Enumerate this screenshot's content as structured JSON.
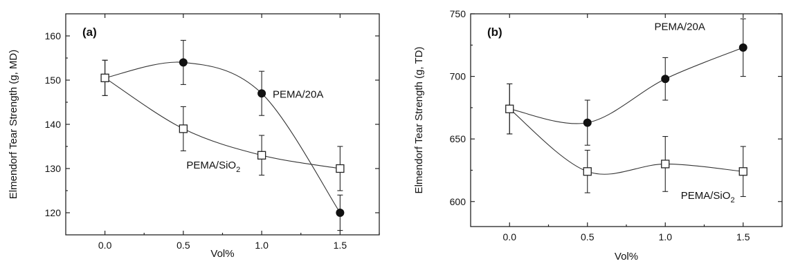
{
  "chart_data": [
    {
      "type": "scatter",
      "panel_label": "(a)",
      "xlabel": "Vol%",
      "ylabel": "Elmendorf Tear Strength (g, MD)",
      "xlim": [
        -0.25,
        1.75
      ],
      "ylim": [
        115,
        165
      ],
      "xticks": [
        0.0,
        0.5,
        1.0,
        1.5
      ],
      "xtick_labels": [
        "0.0",
        "0.5",
        "1.0",
        "1.5"
      ],
      "yticks": [
        120,
        130,
        140,
        150,
        160
      ],
      "ytick_labels": [
        "120",
        "130",
        "140",
        "150",
        "160"
      ],
      "grid": false,
      "series": [
        {
          "name": "PEMA/20A",
          "label_text": "PEMA/20A",
          "marker": "filled-circle",
          "x": [
            0.0,
            0.5,
            1.0,
            1.5
          ],
          "y": [
            150.5,
            154,
            147,
            120
          ],
          "err": [
            4,
            5,
            5,
            4
          ],
          "label_at": [
            1.07,
            146
          ]
        },
        {
          "name": "PEMA/SiO2",
          "label_text": "PEMA/SiO",
          "label_sub": "2",
          "marker": "open-square",
          "x": [
            0.0,
            0.5,
            1.0,
            1.5
          ],
          "y": [
            150.5,
            139,
            133,
            130
          ],
          "err": [
            4,
            5,
            4.5,
            5
          ],
          "label_at": [
            0.52,
            130
          ]
        }
      ]
    },
    {
      "type": "scatter",
      "panel_label": "(b)",
      "xlabel": "Vol%",
      "ylabel": "Elmendorf Tear Strength (g, TD)",
      "xlim": [
        -0.25,
        1.75
      ],
      "ylim": [
        580,
        750
      ],
      "xticks": [
        0.0,
        0.5,
        1.0,
        1.5
      ],
      "xtick_labels": [
        "0.0",
        "0.5",
        "1.0",
        "1.5"
      ],
      "yticks": [
        600,
        650,
        700,
        750
      ],
      "ytick_labels": [
        "600",
        "650",
        "700",
        "750"
      ],
      "grid": false,
      "series": [
        {
          "name": "PEMA/20A",
          "label_text": "PEMA/20A",
          "marker": "filled-circle",
          "x": [
            0.0,
            0.5,
            1.0,
            1.5
          ],
          "y": [
            674,
            663,
            698,
            723
          ],
          "err": [
            20,
            18,
            17,
            23
          ],
          "label_at": [
            0.93,
            737
          ]
        },
        {
          "name": "PEMA/SiO2",
          "label_text": "PEMA/SiO",
          "label_sub": "2",
          "marker": "open-square",
          "x": [
            0.0,
            0.5,
            1.0,
            1.5
          ],
          "y": [
            674,
            624,
            630,
            624
          ],
          "err": [
            20,
            17,
            22,
            20
          ],
          "label_at": [
            1.1,
            602
          ]
        }
      ]
    }
  ]
}
